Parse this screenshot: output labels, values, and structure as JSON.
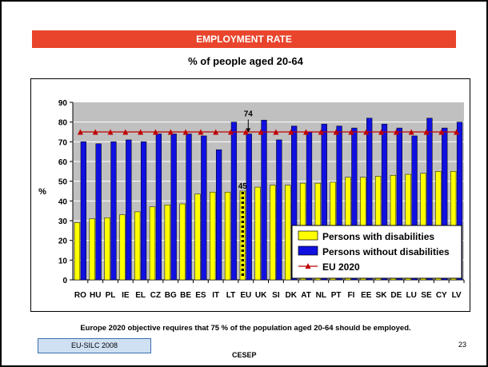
{
  "slide": {
    "title": "EMPLOYMENT RATE",
    "subtitle": "% of people aged 20-64",
    "footer_note": "Europe 2020 objective requires that 75 % of the population aged 20-64 should be employed.",
    "source_label": "EU-SILC 2008",
    "organization": "CESEP",
    "page_number": "23"
  },
  "colors": {
    "title_bar": "#e8452c",
    "plot_background": "#c0c0c0",
    "with_disabilities": "#ffff00",
    "without_disabilities": "#1010e0",
    "eu2020_line": "#c00000"
  },
  "chart_data": {
    "type": "bar",
    "title": "",
    "xlabel": "",
    "ylabel": "%",
    "ylim": [
      0,
      90
    ],
    "yticks": [
      0,
      10,
      20,
      30,
      40,
      50,
      60,
      70,
      80,
      90
    ],
    "grid": true,
    "legend_position": "bottom-right",
    "categories": [
      "RO",
      "HU",
      "PL",
      "IE",
      "EL",
      "CZ",
      "BG",
      "BE",
      "ES",
      "IT",
      "LT",
      "EU",
      "UK",
      "SI",
      "DK",
      "AT",
      "NL",
      "PT",
      "FI",
      "EE",
      "SK",
      "DE",
      "LU",
      "SE",
      "CY",
      "LV"
    ],
    "series": [
      {
        "name": "Persons with disabilities",
        "values": [
          29,
          31,
          31.5,
          33,
          34.5,
          37,
          38,
          38.5,
          43.5,
          44.5,
          44.5,
          45,
          47,
          48,
          48,
          49,
          49,
          49.5,
          52,
          52,
          52.5,
          53,
          53.5,
          54,
          55,
          55
        ]
      },
      {
        "name": "Persons without disabilities",
        "values": [
          70,
          69,
          70,
          71,
          70,
          74,
          74,
          74,
          73,
          66,
          80,
          74,
          81,
          71,
          78,
          75,
          79,
          78,
          77,
          82,
          79,
          77,
          73,
          82,
          77,
          80
        ]
      },
      {
        "name": "EU 2020",
        "values": [
          75,
          75,
          75,
          75,
          75,
          75,
          75,
          75,
          75,
          75,
          75,
          75,
          75,
          75,
          75,
          75,
          75,
          75,
          75,
          75,
          75,
          75,
          75,
          75,
          75,
          75
        ]
      }
    ],
    "annotations": [
      {
        "text": "74",
        "category": "EU",
        "value": 74
      },
      {
        "text": "45",
        "category": "EU",
        "value": 45
      }
    ]
  }
}
